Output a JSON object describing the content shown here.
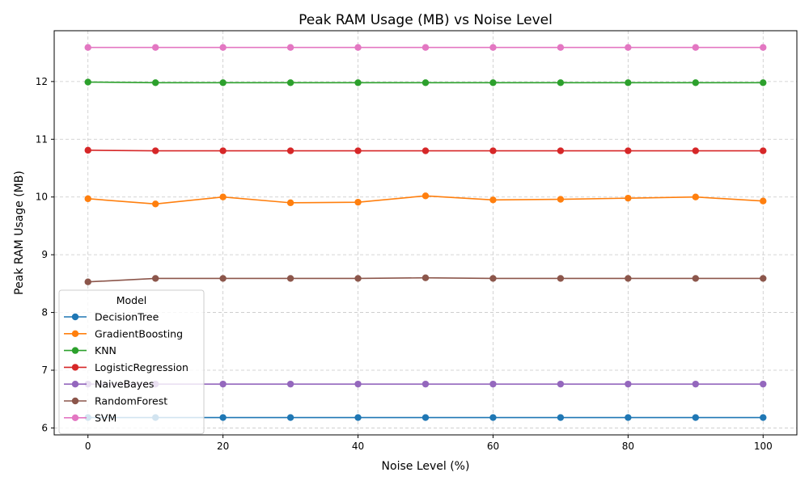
{
  "chart_data": {
    "type": "line",
    "title": "Peak RAM Usage (MB) vs Noise Level",
    "xlabel": "Noise Level (%)",
    "ylabel": "Peak RAM Usage (MB)",
    "xlim": [
      -5,
      105
    ],
    "ylim": [
      5.88,
      12.88
    ],
    "x_ticks": [
      0,
      20,
      40,
      60,
      80,
      100
    ],
    "y_ticks": [
      6,
      7,
      8,
      9,
      10,
      11,
      12
    ],
    "grid": true,
    "legend": {
      "title": "Model",
      "placement": "lower-left"
    },
    "x": [
      0,
      10,
      20,
      30,
      40,
      50,
      60,
      70,
      80,
      90,
      100
    ],
    "series": [
      {
        "name": "DecisionTree",
        "color": "#1f77b4",
        "values": [
          6.18,
          6.18,
          6.18,
          6.18,
          6.18,
          6.18,
          6.18,
          6.18,
          6.18,
          6.18,
          6.18
        ]
      },
      {
        "name": "GradientBoosting",
        "color": "#ff7f0e",
        "values": [
          9.97,
          9.88,
          10.0,
          9.9,
          9.91,
          10.02,
          9.95,
          9.96,
          9.98,
          10.0,
          9.93
        ]
      },
      {
        "name": "KNN",
        "color": "#2ca02c",
        "values": [
          11.99,
          11.98,
          11.98,
          11.98,
          11.98,
          11.98,
          11.98,
          11.98,
          11.98,
          11.98,
          11.98
        ]
      },
      {
        "name": "LogisticRegression",
        "color": "#d62728",
        "values": [
          10.81,
          10.8,
          10.8,
          10.8,
          10.8,
          10.8,
          10.8,
          10.8,
          10.8,
          10.8,
          10.8
        ]
      },
      {
        "name": "NaiveBayes",
        "color": "#9467bd",
        "values": [
          6.76,
          6.76,
          6.76,
          6.76,
          6.76,
          6.76,
          6.76,
          6.76,
          6.76,
          6.76,
          6.76
        ]
      },
      {
        "name": "RandomForest",
        "color": "#8c564b",
        "values": [
          8.53,
          8.59,
          8.59,
          8.59,
          8.59,
          8.6,
          8.59,
          8.59,
          8.59,
          8.59,
          8.59
        ]
      },
      {
        "name": "SVM",
        "color": "#e377c2",
        "values": [
          12.59,
          12.59,
          12.59,
          12.59,
          12.59,
          12.59,
          12.59,
          12.59,
          12.59,
          12.59,
          12.59
        ]
      }
    ]
  }
}
